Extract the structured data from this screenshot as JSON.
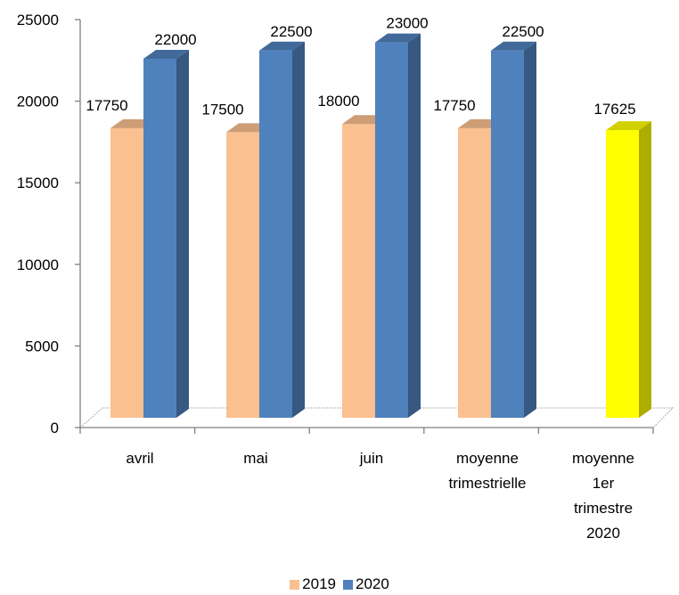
{
  "chart_data": {
    "type": "bar",
    "categories": [
      [
        "avril"
      ],
      [
        "mai"
      ],
      [
        "juin"
      ],
      [
        "moyenne",
        "trimestrielle"
      ],
      [
        "moyenne",
        "1er",
        "trimestre",
        "2020"
      ]
    ],
    "series": [
      {
        "name": "2019",
        "color": "#FAC090",
        "values": [
          17750,
          17500,
          18000,
          17750,
          null
        ]
      },
      {
        "name": "2020",
        "color": "#4F81BD",
        "values": [
          22000,
          22500,
          23000,
          22500,
          null
        ]
      }
    ],
    "extra_bar": {
      "category_index": 4,
      "value": 17625,
      "color": "#FFFF00"
    },
    "data_labels": [
      [
        "17750",
        "22000"
      ],
      [
        "17500",
        "22500"
      ],
      [
        "18000",
        "23000"
      ],
      [
        "17750",
        "22500"
      ],
      [
        "17625"
      ]
    ],
    "yticks": [
      0,
      5000,
      10000,
      15000,
      20000,
      25000
    ],
    "ylim": [
      0,
      25000
    ],
    "legend_position": "bottom",
    "grid": false
  }
}
